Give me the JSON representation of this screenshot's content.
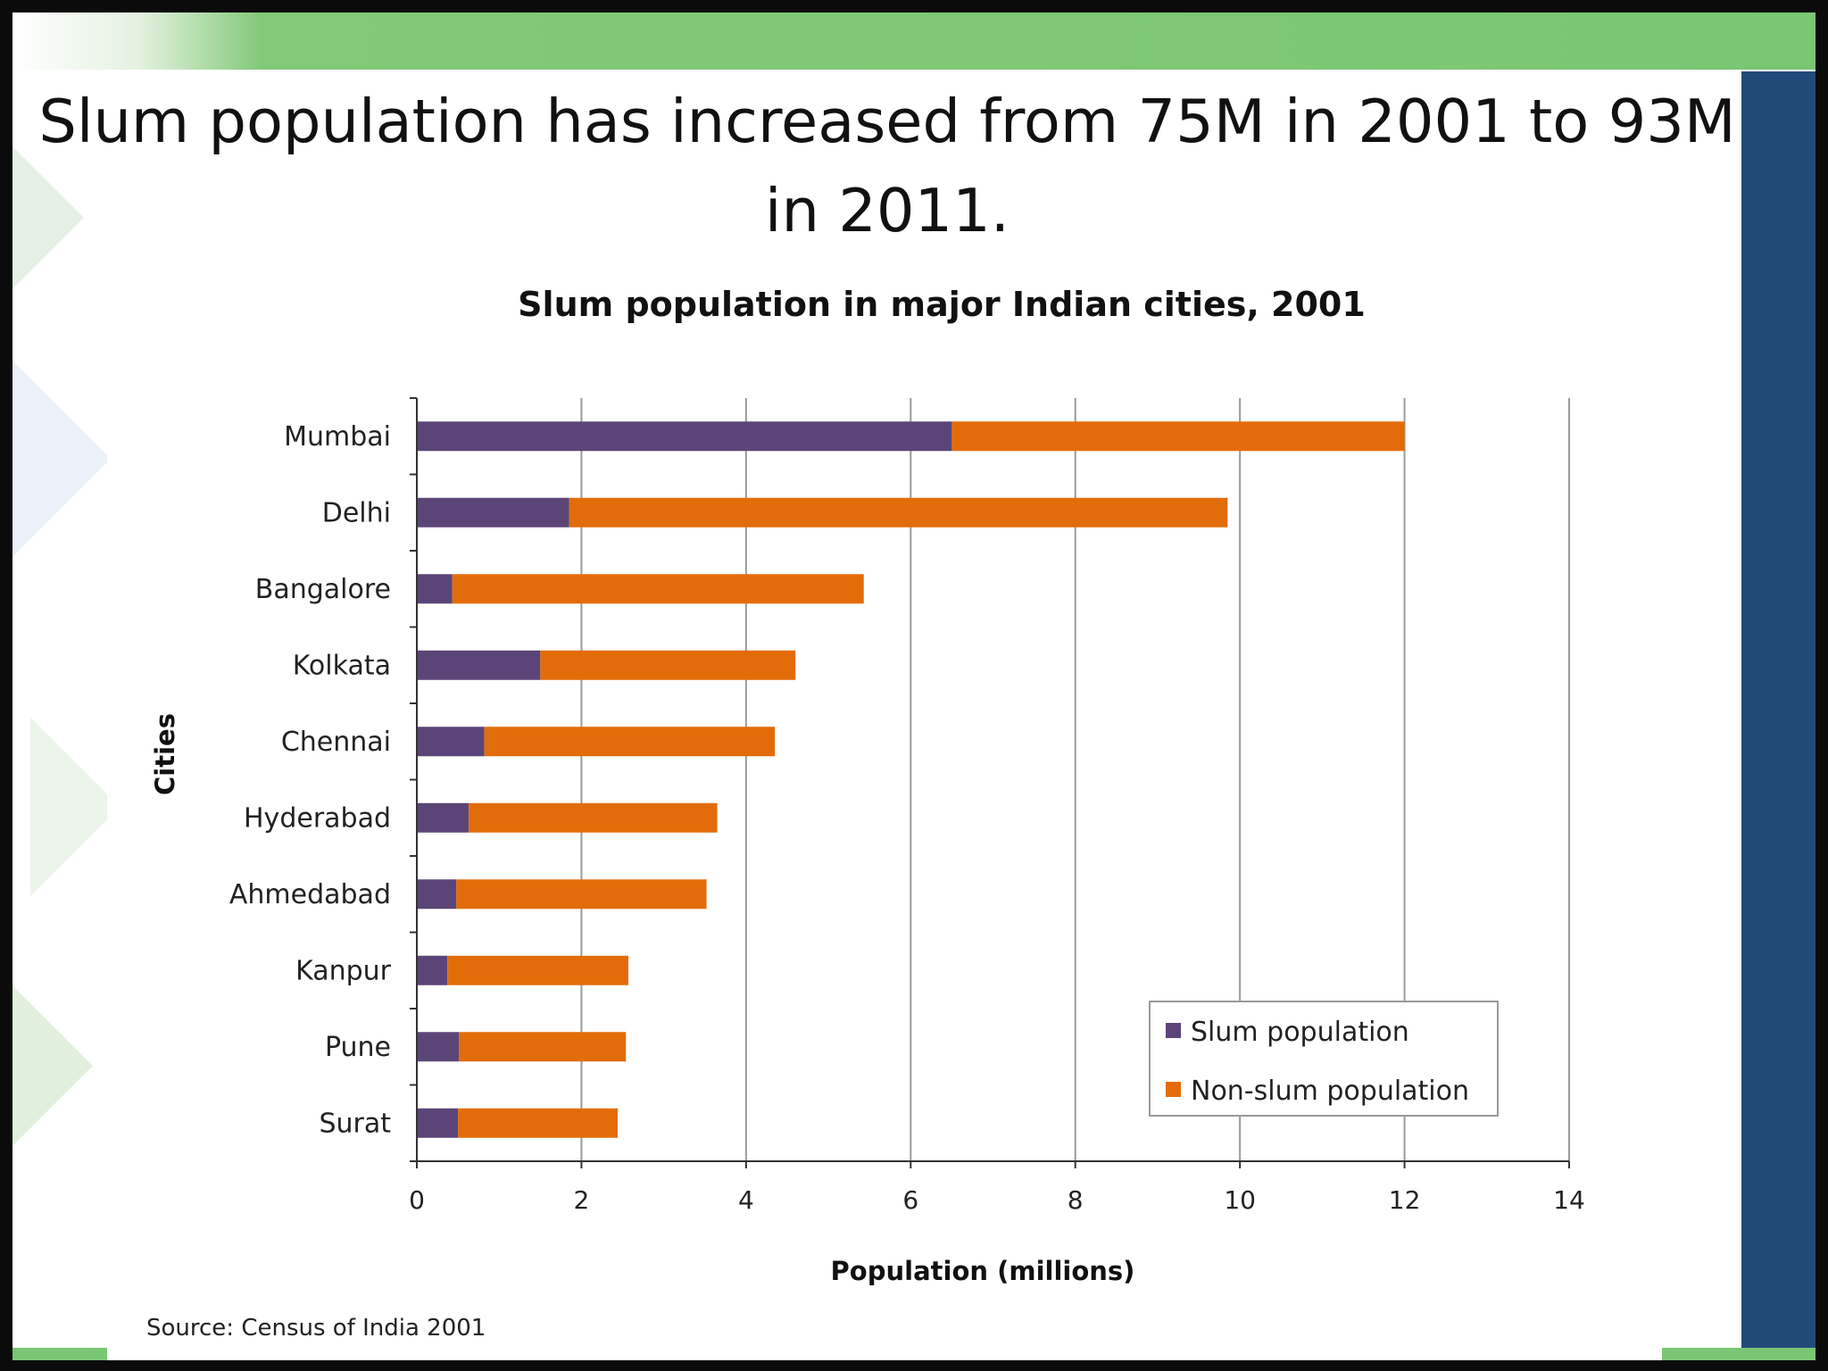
{
  "slide": {
    "headline": "Slum population has increased from 75M in 2001 to 93M in 2011.",
    "colors": {
      "top_band": "#7ac673",
      "side_panel": "#224a79"
    }
  },
  "source_note": "Source: Census of India 2001",
  "chart_data": {
    "type": "bar",
    "orientation": "horizontal",
    "stacked": true,
    "title": "Slum population in major Indian cities, 2001",
    "xlabel": "Population (millions)",
    "ylabel": "Cities",
    "xlim": [
      0,
      14
    ],
    "xticks": [
      "0",
      "2",
      "4",
      "6",
      "8",
      "10",
      "12",
      "14"
    ],
    "grid": "vertical",
    "legend_position": "bottom-right",
    "categories": [
      "Mumbai",
      "Delhi",
      "Bangalore",
      "Kolkata",
      "Chennai",
      "Hyderabad",
      "Ahmedabad",
      "Kanpur",
      "Pune",
      "Surat"
    ],
    "series": [
      {
        "name": "Slum population",
        "color": "#5b4578",
        "values": [
          6.5,
          1.85,
          0.43,
          1.5,
          0.82,
          0.63,
          0.48,
          0.37,
          0.51,
          0.5
        ]
      },
      {
        "name": "Non-slum population",
        "color": "#e36c0a",
        "values": [
          5.5,
          8.0,
          5.0,
          3.1,
          3.53,
          3.02,
          3.04,
          2.2,
          2.03,
          1.94
        ]
      }
    ]
  }
}
